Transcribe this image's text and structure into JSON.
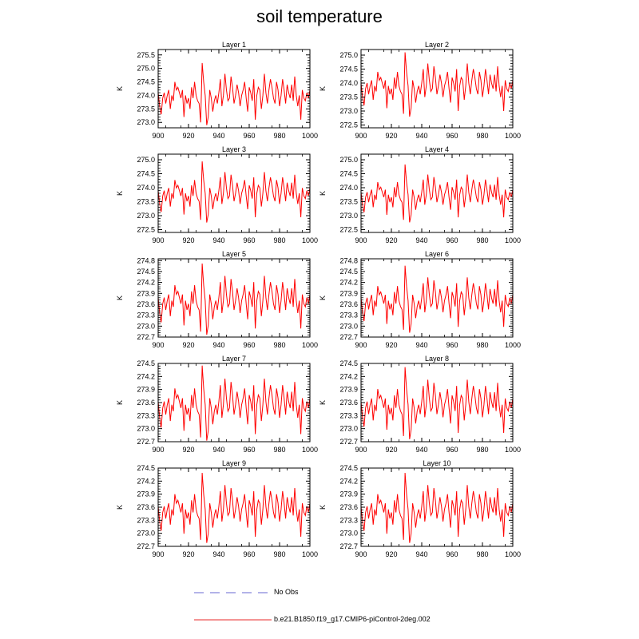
{
  "title": "soil temperature",
  "legend": {
    "obs_label": "No Obs",
    "model_label": "b.e21.B1850.f19_g17.CMIP6-piControl-2deg.002",
    "obs_color": "#9a9ae0",
    "model_color": "#f07070"
  },
  "colors": {
    "series": "#ff0000",
    "frame": "#000000"
  },
  "chart_data": [
    {
      "type": "line",
      "title": "Layer 1",
      "ylabel": "K",
      "xlim": [
        900,
        1000
      ],
      "ylim": [
        272.8,
        275.7
      ],
      "xticks": [
        900,
        920,
        940,
        960,
        980,
        1000
      ],
      "yticks": [
        273.0,
        273.5,
        274.0,
        274.5,
        275.0,
        275.5
      ],
      "ytick_labels": [
        "273.0",
        "273.5",
        "274.0",
        "274.5",
        "275.0",
        "275.5"
      ]
    },
    {
      "type": "line",
      "title": "Layer 2",
      "ylabel": "K",
      "xlim": [
        900,
        1000
      ],
      "ylim": [
        272.4,
        275.2
      ],
      "xticks": [
        900,
        920,
        940,
        960,
        980,
        1000
      ],
      "yticks": [
        272.5,
        273.0,
        273.5,
        274.0,
        274.5,
        275.0
      ],
      "ytick_labels": [
        "272.5",
        "273.0",
        "273.5",
        "274.0",
        "274.5",
        "275.0"
      ]
    },
    {
      "type": "line",
      "title": "Layer 3",
      "ylabel": "K",
      "xlim": [
        900,
        1000
      ],
      "ylim": [
        272.4,
        275.2
      ],
      "xticks": [
        900,
        920,
        940,
        960,
        980,
        1000
      ],
      "yticks": [
        272.5,
        273.0,
        273.5,
        274.0,
        274.5,
        275.0
      ],
      "ytick_labels": [
        "272.5",
        "273.0",
        "273.5",
        "274.0",
        "274.5",
        "275.0"
      ]
    },
    {
      "type": "line",
      "title": "Layer 4",
      "ylabel": "K",
      "xlim": [
        900,
        1000
      ],
      "ylim": [
        272.4,
        275.2
      ],
      "xticks": [
        900,
        920,
        940,
        960,
        980,
        1000
      ],
      "yticks": [
        272.5,
        273.0,
        273.5,
        274.0,
        274.5,
        275.0
      ],
      "ytick_labels": [
        "272.5",
        "273.0",
        "273.5",
        "274.0",
        "274.5",
        "275.0"
      ]
    },
    {
      "type": "line",
      "title": "Layer 5",
      "ylabel": "K",
      "xlim": [
        900,
        1000
      ],
      "ylim": [
        272.7,
        274.85
      ],
      "xticks": [
        900,
        920,
        940,
        960,
        980,
        1000
      ],
      "yticks": [
        272.7,
        273.0,
        273.3,
        273.6,
        273.9,
        274.2,
        274.5,
        274.8
      ],
      "ytick_labels": [
        "272.7",
        "273.0",
        "273.3",
        "273.6",
        "273.9",
        "274.2",
        "274.5",
        "274.8"
      ]
    },
    {
      "type": "line",
      "title": "Layer 6",
      "ylabel": "K",
      "xlim": [
        900,
        1000
      ],
      "ylim": [
        272.7,
        274.85
      ],
      "xticks": [
        900,
        920,
        940,
        960,
        980,
        1000
      ],
      "yticks": [
        272.7,
        273.0,
        273.3,
        273.6,
        273.9,
        274.2,
        274.5,
        274.8
      ],
      "ytick_labels": [
        "272.7",
        "273.0",
        "273.3",
        "273.6",
        "273.9",
        "274.2",
        "274.5",
        "274.8"
      ]
    },
    {
      "type": "line",
      "title": "Layer 7",
      "ylabel": "K",
      "xlim": [
        900,
        1000
      ],
      "ylim": [
        272.7,
        274.5
      ],
      "xticks": [
        900,
        920,
        940,
        960,
        980,
        1000
      ],
      "yticks": [
        272.7,
        273.0,
        273.3,
        273.6,
        273.9,
        274.2,
        274.5
      ],
      "ytick_labels": [
        "272.7",
        "273.0",
        "273.3",
        "273.6",
        "273.9",
        "274.2",
        "274.5"
      ]
    },
    {
      "type": "line",
      "title": "Layer 8",
      "ylabel": "K",
      "xlim": [
        900,
        1000
      ],
      "ylim": [
        272.7,
        274.5
      ],
      "xticks": [
        900,
        920,
        940,
        960,
        980,
        1000
      ],
      "yticks": [
        272.7,
        273.0,
        273.3,
        273.6,
        273.9,
        274.2,
        274.5
      ],
      "ytick_labels": [
        "272.7",
        "273.0",
        "273.3",
        "273.6",
        "273.9",
        "274.2",
        "274.5"
      ]
    },
    {
      "type": "line",
      "title": "Layer 9",
      "ylabel": "K",
      "xlim": [
        900,
        1000
      ],
      "ylim": [
        272.7,
        274.5
      ],
      "xticks": [
        900,
        920,
        940,
        960,
        980,
        1000
      ],
      "yticks": [
        272.7,
        273.0,
        273.3,
        273.6,
        273.9,
        274.2,
        274.5
      ],
      "ytick_labels": [
        "272.7",
        "273.0",
        "273.3",
        "273.6",
        "273.9",
        "274.2",
        "274.5"
      ]
    },
    {
      "type": "line",
      "title": "Layer 10",
      "ylabel": "K",
      "xlim": [
        900,
        1000
      ],
      "ylim": [
        272.7,
        274.5
      ],
      "xticks": [
        900,
        920,
        940,
        960,
        980,
        1000
      ],
      "yticks": [
        272.7,
        273.0,
        273.3,
        273.6,
        273.9,
        274.2,
        274.5
      ],
      "ytick_labels": [
        "272.7",
        "273.0",
        "273.3",
        "273.6",
        "273.9",
        "274.2",
        "274.5"
      ]
    }
  ],
  "series_values": {
    "base": [
      274.1,
      273.6,
      273.3,
      273.9,
      274.1,
      273.7,
      274.0,
      274.2,
      273.5,
      274.0,
      273.8,
      274.5,
      274.2,
      274.3,
      274.1,
      273.9,
      274.2,
      273.2,
      274.0,
      273.7,
      273.9,
      273.5,
      274.3,
      273.9,
      274.5,
      274.0,
      273.8,
      273.7,
      273.0,
      275.2,
      274.5,
      274.0,
      272.9,
      273.2,
      274.2,
      273.9,
      273.4,
      273.8,
      274.0,
      273.7,
      274.1,
      274.6,
      273.6,
      274.0,
      274.8,
      274.2,
      273.8,
      273.9,
      274.7,
      274.3,
      273.7,
      274.0,
      274.4,
      274.1,
      273.6,
      274.0,
      274.2,
      274.5,
      273.9,
      273.4,
      274.3,
      274.1,
      273.8,
      274.6,
      273.1,
      274.0,
      274.3,
      274.2,
      273.5,
      274.0,
      274.8,
      274.1,
      273.7,
      274.2,
      274.6,
      274.3,
      273.9,
      273.7,
      274.5,
      274.2,
      273.6,
      274.0,
      274.6,
      274.2,
      273.7,
      274.4,
      274.1,
      273.9,
      274.4,
      273.8,
      274.7,
      274.0,
      273.6,
      274.0,
      273.1,
      274.2,
      273.9,
      273.8,
      274.1,
      273.9,
      274.2
    ],
    "layers": [
      {
        "offset": 0.0,
        "scale": 1.0,
        "center": 274.0
      },
      {
        "offset": -0.1,
        "scale": 1.0,
        "center": 274.0
      },
      {
        "offset": -0.2,
        "scale": 0.95,
        "center": 274.0
      },
      {
        "offset": -0.25,
        "scale": 0.9,
        "center": 274.0
      },
      {
        "offset": -0.3,
        "scale": 0.85,
        "center": 274.0
      },
      {
        "offset": -0.3,
        "scale": 0.8,
        "center": 274.0
      },
      {
        "offset": -0.45,
        "scale": 0.75,
        "center": 274.0
      },
      {
        "offset": -0.45,
        "scale": 0.72,
        "center": 274.0
      },
      {
        "offset": -0.45,
        "scale": 0.7,
        "center": 274.0
      },
      {
        "offset": -0.45,
        "scale": 0.7,
        "center": 274.0
      }
    ]
  }
}
